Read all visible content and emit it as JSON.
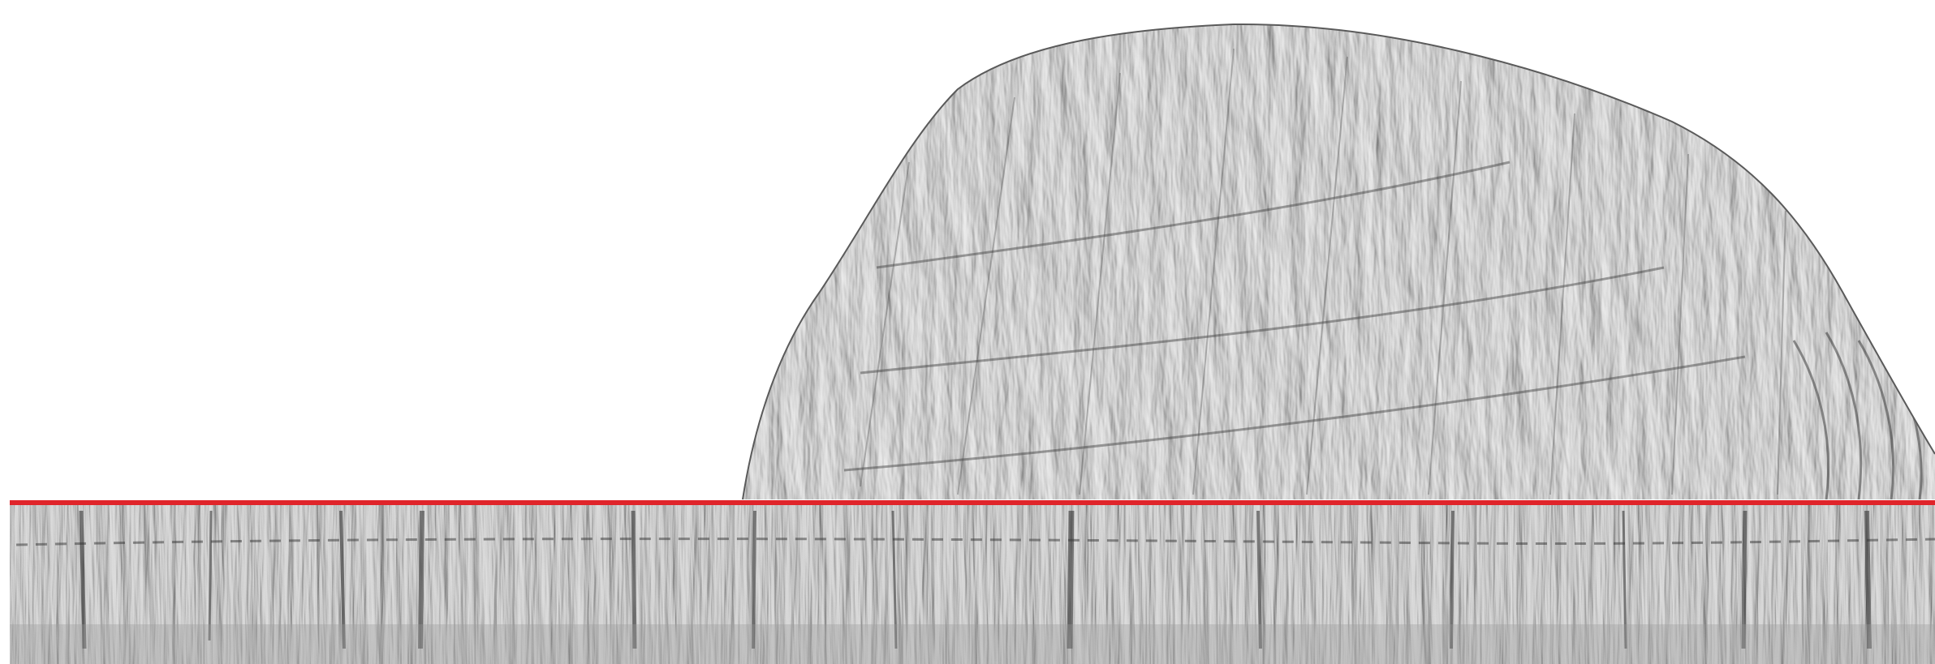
{
  "image": {
    "subject": "rock-art-relief-scan",
    "rendering": "hillshade-grayscale",
    "background_color": "#ffffff",
    "surface_light": "#e6e6e6",
    "surface_mid": "#b4b4b4",
    "surface_dark": "#3c3c3c",
    "divider_color": "#e0242a"
  }
}
